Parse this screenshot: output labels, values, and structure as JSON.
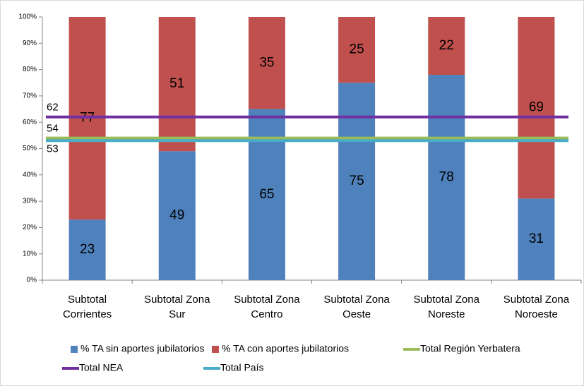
{
  "chart_data": {
    "type": "bar",
    "categories": [
      [
        "Subtotal",
        "Corrientes"
      ],
      [
        "Subtotal Zona",
        "Sur"
      ],
      [
        "Subtotal Zona",
        "Centro"
      ],
      [
        "Subtotal Zona",
        "Oeste"
      ],
      [
        "Subtotal Zona",
        "Noreste"
      ],
      [
        "Subtotal Zona",
        "Noroeste"
      ]
    ],
    "series": [
      {
        "name": "% TA sin aportes jubilatorios",
        "type": "bar",
        "color": "#4f81bd",
        "values": [
          23,
          49,
          65,
          75,
          78,
          31
        ]
      },
      {
        "name": "% TA con aportes jubilatorios",
        "type": "bar",
        "color": "#c0504d",
        "values": [
          77,
          51,
          35,
          25,
          22,
          69
        ]
      },
      {
        "name": "Total Región Yerbatera",
        "type": "line",
        "color": "#9bbb59",
        "value": 54
      },
      {
        "name": "Total NEA",
        "type": "line",
        "color": "#7030a0",
        "value": 62
      },
      {
        "name": "Total País",
        "type": "line",
        "color": "#4bacc6",
        "value": 53
      }
    ],
    "ylim": [
      0,
      100
    ],
    "yticks": [
      {
        "value": 0,
        "label": "0%"
      },
      {
        "value": 10,
        "label": "10%"
      },
      {
        "value": 20,
        "label": "20%"
      },
      {
        "value": 30,
        "label": "30%"
      },
      {
        "value": 40,
        "label": "40%"
      },
      {
        "value": 50,
        "label": "50%"
      },
      {
        "value": 60,
        "label": "60%"
      },
      {
        "value": 70,
        "label": "70%"
      },
      {
        "value": 80,
        "label": "80%"
      },
      {
        "value": 90,
        "label": "90%"
      },
      {
        "value": 100,
        "label": "100%"
      }
    ],
    "legend": "bottom"
  }
}
